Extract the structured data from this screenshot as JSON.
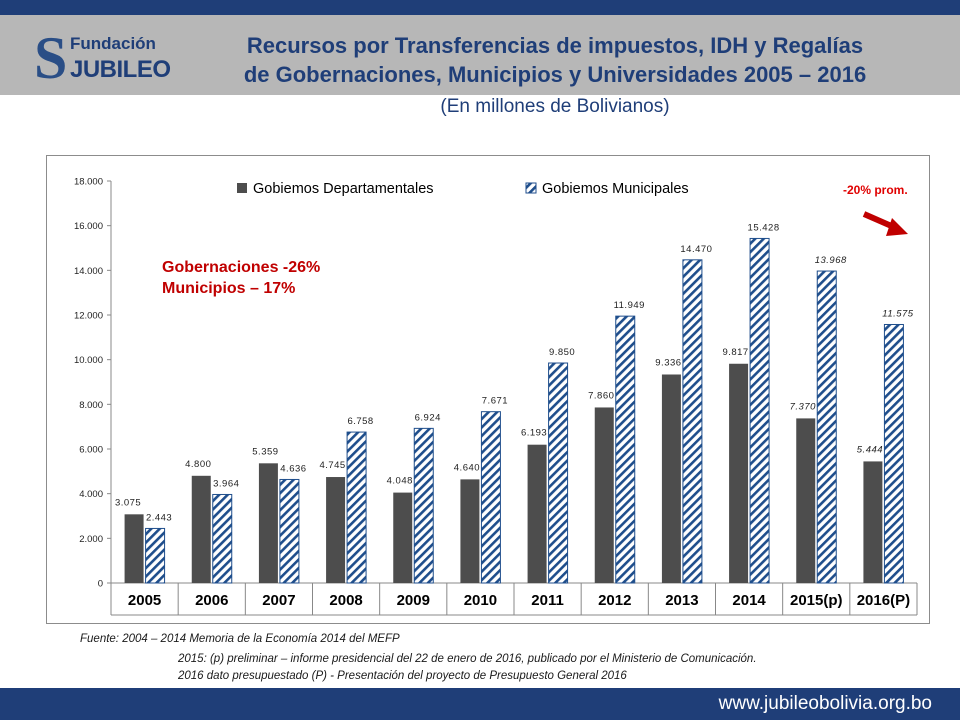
{
  "header": {
    "logo_text_top": "Fundación",
    "logo_text_bottom": "JUBILEO",
    "title_line1": "Recursos por Transferencias de impuestos, IDH y Regalías",
    "title_line2": "de Gobernaciones, Municipios y Universidades 2005 – 2016",
    "subtitle": "(En millones de Bolivianos)"
  },
  "annotations": {
    "gobernaciones": "Gobernaciones -26%",
    "municipios": "Municipios – 17%",
    "promedio": "-20% prom."
  },
  "footer": {
    "source_line1": "Fuente: 2004 – 2014 Memoria de la Economía 2014 del MEFP",
    "source_line2": "2015: (p) preliminar – informe presidencial del 22 de enero de 2016, publicado por el Ministerio de Comunicación.",
    "source_line3": "2016 dato presupuestado (P) - Presentación del proyecto de Presupuesto General 2016",
    "url": "www.jubileobolivia.org.bo"
  },
  "colors": {
    "navy": "#1f3e78",
    "gray_band": "#b7b7b7",
    "dept_bar": "#4d4d4d",
    "muni_hatch": "#1f4e8c",
    "red": "#c00000"
  },
  "chart_data": {
    "type": "bar",
    "categories": [
      "2005",
      "2006",
      "2007",
      "2008",
      "2009",
      "2010",
      "2011",
      "2012",
      "2013",
      "2014",
      "2015(p)",
      "2016(P)"
    ],
    "series": [
      {
        "name": "Gobiemos Departamentales",
        "values": [
          3075,
          4800,
          5359,
          4745,
          4048,
          4640,
          6193,
          7860,
          9336,
          9817,
          7370,
          5444
        ],
        "labels": [
          "3.075",
          "4.800",
          "5.359",
          "4.745",
          "4.048",
          "4.640",
          "6.193",
          "7.860",
          "9.336",
          "9.817",
          "7.370",
          "5.444"
        ]
      },
      {
        "name": "Gobiemos Municipales",
        "values": [
          2443,
          3964,
          4636,
          6758,
          6924,
          7671,
          9850,
          11949,
          14470,
          15428,
          13968,
          11575
        ],
        "labels": [
          "2.443",
          "3.964",
          "4.636",
          "6.758",
          "6.924",
          "7.671",
          "9.850",
          "11.949",
          "14.470",
          "15.428",
          "13.968",
          "11.575"
        ]
      }
    ],
    "yticks": [
      0,
      2000,
      4000,
      6000,
      8000,
      10000,
      12000,
      14000,
      16000,
      18000
    ],
    "ytick_labels": [
      "0",
      "2.000",
      "4.000",
      "6.000",
      "8.000",
      "10.000",
      "12.000",
      "14.000",
      "16.000",
      "18.000"
    ],
    "ylim": [
      0,
      18000
    ],
    "legend_position": "top",
    "grid": false
  }
}
